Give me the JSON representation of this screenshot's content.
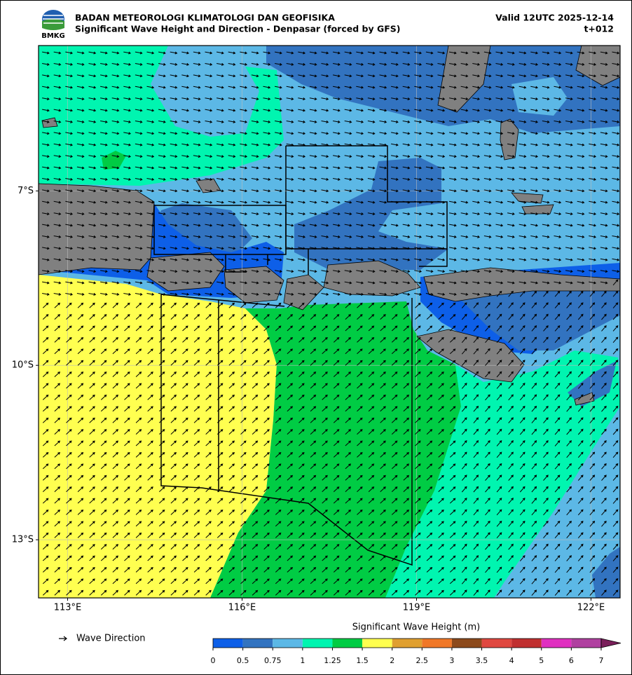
{
  "header": {
    "logo": "BMKG",
    "agency": "BADAN METEOROLOGI KLIMATOLOGI DAN GEOFISIKA",
    "title": "Significant Wave Height and Direction - Denpasar (forced by GFS)",
    "valid": "Valid 12UTC 2025-12-14",
    "lead": "t+012"
  },
  "map": {
    "xlim": [
      112.5,
      122.5
    ],
    "ylim": [
      -14,
      -4.5
    ],
    "xticks": [
      {
        "value": 113,
        "label": "113°E"
      },
      {
        "value": 116,
        "label": "116°E"
      },
      {
        "value": 119,
        "label": "119°E"
      },
      {
        "value": 122,
        "label": "122°E"
      }
    ],
    "yticks": [
      {
        "value": -7,
        "label": "7°S"
      },
      {
        "value": -10,
        "label": "10°S"
      },
      {
        "value": -13,
        "label": "13°S"
      }
    ]
  },
  "legend": {
    "arrow_label": "Wave Direction"
  },
  "colorbar": {
    "title": "Significant Wave Height (m)",
    "levels": [
      0,
      0.5,
      0.75,
      1,
      1.25,
      1.5,
      2,
      2.5,
      3,
      3.5,
      4,
      5,
      6,
      7
    ],
    "colors": [
      "#0d5fe8",
      "#3273c0",
      "#5cb8e6",
      "#00f5b0",
      "#00cc44",
      "#ffff50",
      "#e0a030",
      "#f07828",
      "#8c4a1c",
      "#e04840",
      "#c03030",
      "#e030c0",
      "#b040a0",
      "#7a1f5a"
    ]
  }
}
